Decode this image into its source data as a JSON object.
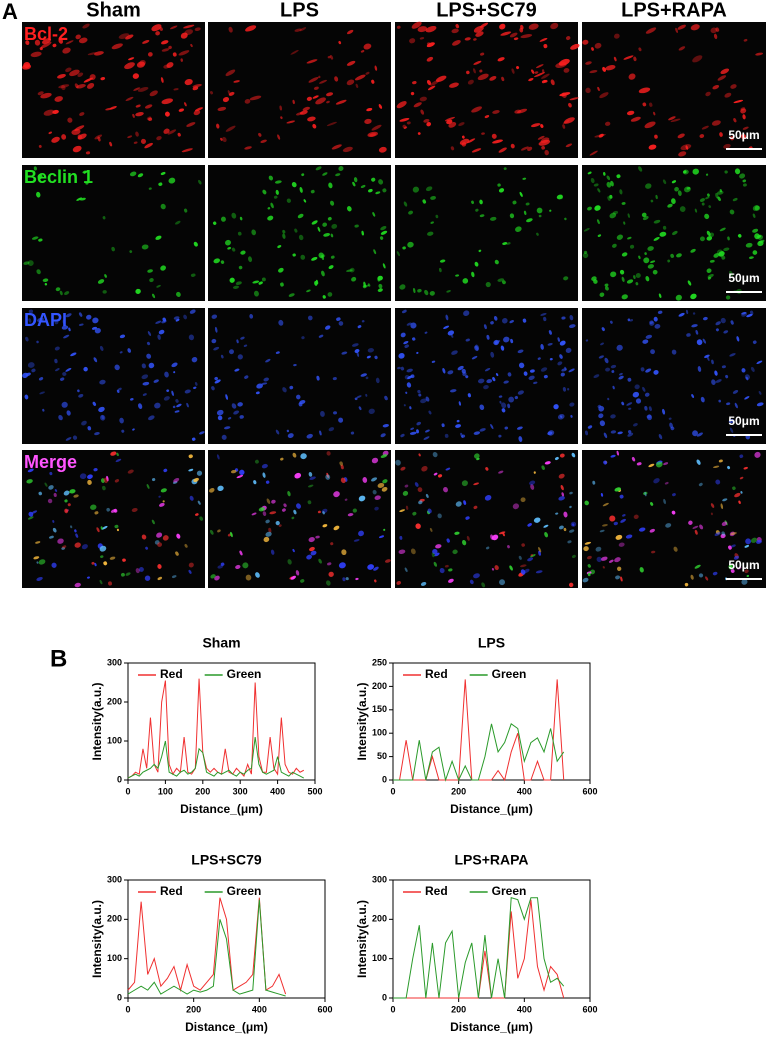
{
  "panel_a": {
    "label": "A",
    "columns": [
      "Sham",
      "LPS",
      "LPS+SC79",
      "LPS+RAPA"
    ],
    "rows": [
      "Bcl-2",
      "Beclin 1",
      "DAPI",
      "Merge"
    ],
    "scale_bar": "50μm"
  },
  "panel_b": {
    "label": "B"
  },
  "chart_data": [
    {
      "type": "line",
      "title": "Sham",
      "x_label": "Distance_(μm)",
      "y_label": "Intensity(a.u.)",
      "legend": "top",
      "x": [
        0,
        10,
        20,
        30,
        40,
        50,
        60,
        70,
        80,
        90,
        100,
        110,
        120,
        130,
        140,
        150,
        160,
        170,
        180,
        190,
        200,
        210,
        220,
        230,
        240,
        250,
        260,
        270,
        280,
        290,
        300,
        310,
        320,
        330,
        340,
        350,
        360,
        370,
        380,
        390,
        400,
        410,
        420,
        430,
        440,
        450,
        460,
        470
      ],
      "series": [
        {
          "name": "Red",
          "color": "#f03030",
          "values": [
            5,
            10,
            20,
            15,
            80,
            30,
            160,
            40,
            20,
            200,
            255,
            40,
            15,
            30,
            20,
            110,
            20,
            15,
            30,
            260,
            70,
            30,
            20,
            30,
            20,
            15,
            80,
            20,
            15,
            30,
            20,
            10,
            40,
            15,
            250,
            60,
            20,
            20,
            110,
            30,
            15,
            160,
            40,
            20,
            15,
            30,
            20,
            25
          ]
        },
        {
          "name": "Green",
          "color": "#2a9a2a",
          "values": [
            5,
            10,
            15,
            10,
            20,
            25,
            30,
            40,
            30,
            60,
            100,
            20,
            15,
            10,
            20,
            25,
            15,
            20,
            30,
            80,
            70,
            20,
            15,
            10,
            20,
            15,
            20,
            25,
            15,
            10,
            20,
            15,
            25,
            30,
            110,
            40,
            20,
            15,
            20,
            25,
            60,
            20,
            15,
            10,
            20,
            15,
            10,
            5
          ]
        }
      ],
      "xlim": [
        0,
        500
      ],
      "xticks": [
        0,
        100,
        200,
        300,
        400,
        500
      ],
      "ylim": [
        0,
        300
      ],
      "yticks": [
        0,
        100,
        200,
        300
      ]
    },
    {
      "type": "line",
      "title": "LPS",
      "x_label": "Distance_(μm)",
      "y_label": "Intensity(a.u.)",
      "legend": "top",
      "x": [
        0,
        20,
        40,
        60,
        80,
        100,
        120,
        140,
        160,
        180,
        200,
        220,
        240,
        260,
        280,
        300,
        320,
        340,
        360,
        380,
        400,
        420,
        440,
        460,
        480,
        500,
        520
      ],
      "series": [
        {
          "name": "Red",
          "color": "#f03030",
          "values": [
            0,
            0,
            85,
            0,
            0,
            0,
            50,
            0,
            0,
            0,
            0,
            215,
            0,
            0,
            0,
            0,
            20,
            0,
            60,
            100,
            0,
            0,
            40,
            0,
            0,
            215,
            0
          ]
        },
        {
          "name": "Green",
          "color": "#2a9a2a",
          "values": [
            0,
            0,
            0,
            0,
            85,
            0,
            60,
            70,
            0,
            40,
            0,
            30,
            0,
            0,
            50,
            120,
            60,
            80,
            120,
            110,
            40,
            80,
            90,
            60,
            110,
            40,
            60
          ]
        }
      ],
      "xlim": [
        0,
        600
      ],
      "xticks": [
        0,
        200,
        400,
        600
      ],
      "ylim": [
        0,
        250
      ],
      "yticks": [
        0,
        50,
        100,
        150,
        200,
        250
      ]
    },
    {
      "type": "line",
      "title": "LPS+SC79",
      "x_label": "Distance_(μm)",
      "y_label": "Intensity(a.u.)",
      "legend": "top",
      "x": [
        0,
        20,
        40,
        60,
        80,
        100,
        120,
        140,
        160,
        180,
        200,
        220,
        240,
        260,
        280,
        300,
        320,
        340,
        360,
        380,
        400,
        420,
        440,
        460,
        480
      ],
      "series": [
        {
          "name": "Red",
          "color": "#f03030",
          "values": [
            20,
            40,
            245,
            60,
            100,
            30,
            50,
            80,
            20,
            85,
            30,
            20,
            40,
            60,
            255,
            200,
            20,
            30,
            40,
            60,
            255,
            20,
            30,
            60,
            10
          ]
        },
        {
          "name": "Green",
          "color": "#2a9a2a",
          "values": [
            10,
            20,
            30,
            20,
            40,
            10,
            20,
            30,
            20,
            10,
            20,
            15,
            20,
            30,
            200,
            150,
            20,
            10,
            15,
            20,
            250,
            20,
            15,
            10,
            5
          ]
        }
      ],
      "xlim": [
        0,
        600
      ],
      "xticks": [
        0,
        200,
        400,
        600
      ],
      "ylim": [
        0,
        300
      ],
      "yticks": [
        0,
        100,
        200,
        300
      ]
    },
    {
      "type": "line",
      "title": "LPS+RAPA",
      "x_label": "Distance_(μm)",
      "y_label": "Intensity(a.u.)",
      "legend": "top",
      "x": [
        0,
        20,
        40,
        60,
        80,
        100,
        120,
        140,
        160,
        180,
        200,
        220,
        240,
        260,
        280,
        300,
        320,
        340,
        360,
        380,
        400,
        420,
        440,
        460,
        480,
        500,
        520
      ],
      "series": [
        {
          "name": "Red",
          "color": "#f03030",
          "values": [
            0,
            0,
            0,
            0,
            0,
            0,
            0,
            0,
            0,
            0,
            0,
            0,
            0,
            0,
            120,
            0,
            0,
            0,
            220,
            50,
            100,
            250,
            80,
            20,
            80,
            60,
            0
          ]
        },
        {
          "name": "Green",
          "color": "#2a9a2a",
          "values": [
            0,
            0,
            0,
            100,
            185,
            0,
            140,
            0,
            140,
            170,
            0,
            90,
            140,
            0,
            160,
            0,
            100,
            0,
            255,
            250,
            200,
            255,
            255,
            100,
            40,
            50,
            30
          ]
        }
      ],
      "xlim": [
        0,
        600
      ],
      "xticks": [
        0,
        200,
        400,
        600
      ],
      "ylim": [
        0,
        300
      ],
      "yticks": [
        0,
        100,
        200,
        300
      ]
    }
  ]
}
